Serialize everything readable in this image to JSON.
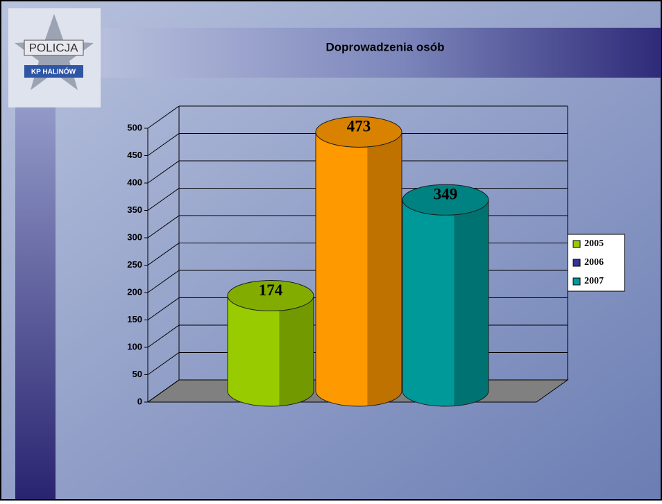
{
  "logo": {
    "top": "POLICJA",
    "bottom": "KP HALINÓW"
  },
  "chart_data": {
    "type": "cylinder",
    "title": "Doprowadzenia osób",
    "series": [
      {
        "name": "2005",
        "color": "#99cc00",
        "bar_color": "#99cc00",
        "values": [
          174
        ]
      },
      {
        "name": "2006",
        "color": "#333399",
        "bar_color": "#ff9900",
        "values": [
          473
        ]
      },
      {
        "name": "2007",
        "color": "#009999",
        "bar_color": "#009999",
        "values": [
          349
        ]
      }
    ],
    "ylim": [
      0,
      500
    ],
    "yticks": [
      0,
      50,
      100,
      150,
      200,
      250,
      300,
      350,
      400,
      450,
      500
    ],
    "grid": true,
    "legend": "right"
  }
}
